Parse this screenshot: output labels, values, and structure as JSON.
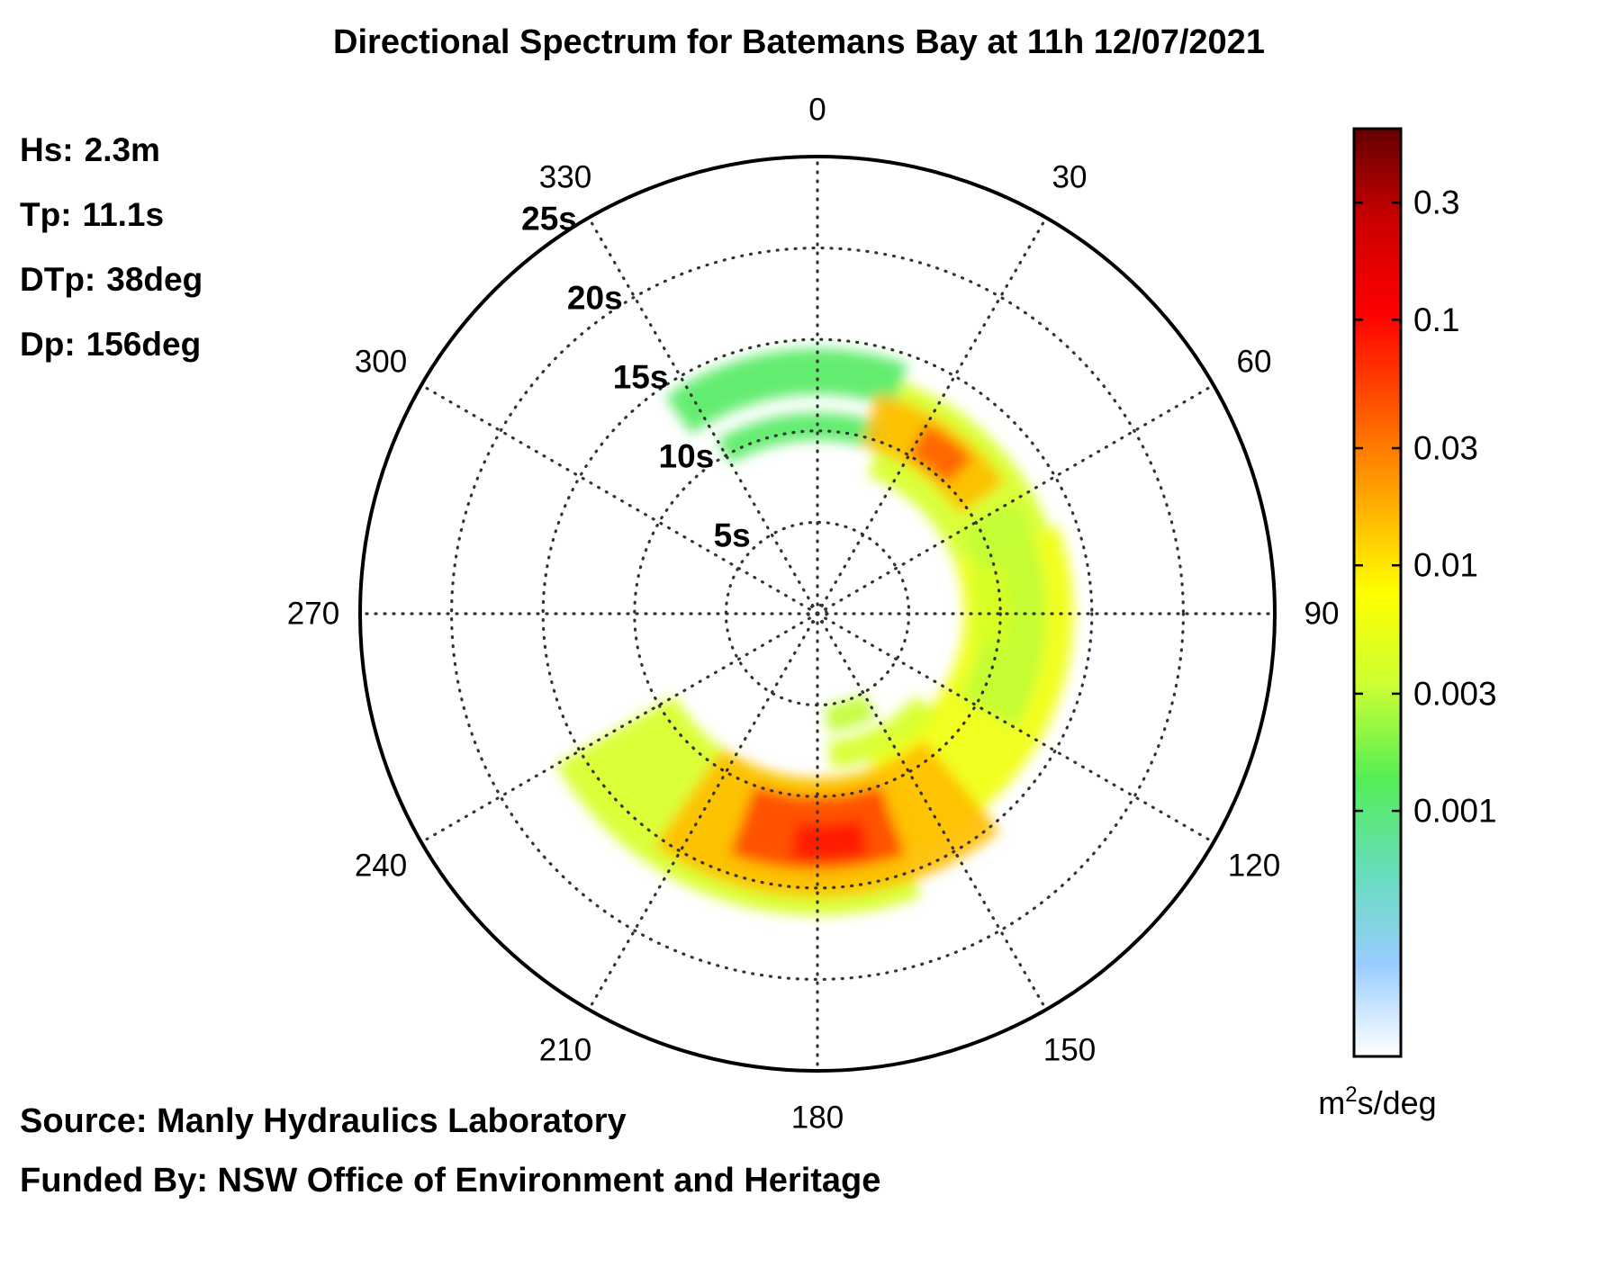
{
  "chart_data": {
    "type": "polar-heatmap",
    "title": "Directional Spectrum for Batemans Bay at 11h 12/07/2021",
    "summary": [
      {
        "label": "Hs:",
        "value": "2.3m"
      },
      {
        "label": "Tp:",
        "value": "11.1s"
      },
      {
        "label": "DTp:",
        "value": "38deg"
      },
      {
        "label": "Dp:",
        "value": "156deg"
      }
    ],
    "angle_axis": {
      "orientation": "clockwise-from-north",
      "labels": [
        "0",
        "30",
        "60",
        "90",
        "120",
        "150",
        "180",
        "210",
        "240",
        "270",
        "300",
        "330"
      ],
      "values": [
        0,
        30,
        60,
        90,
        120,
        150,
        180,
        210,
        240,
        270,
        300,
        330
      ]
    },
    "radial_axis": {
      "unit": "s",
      "max": 25,
      "rings": [
        5,
        10,
        15,
        20,
        25
      ],
      "labels": [
        "5s",
        "10s",
        "15s",
        "20s",
        "25s"
      ],
      "label_direction_deg": 330
    },
    "colorbar": {
      "scale": "log",
      "range": [
        0.0001,
        0.6
      ],
      "ticks": [
        0.001,
        0.003,
        0.01,
        0.03,
        0.1,
        0.3
      ],
      "tick_labels": [
        "0.001",
        "0.003",
        "0.01",
        "0.03",
        "0.1",
        "0.3"
      ],
      "label_main": "m",
      "label_sup": "2",
      "label_rest": "s/deg",
      "stops": [
        "#ffffff",
        "#99ccff",
        "#66ddbb",
        "#55ee55",
        "#ccff33",
        "#ffff00",
        "#ffaa00",
        "#ff5500",
        "#ff0000",
        "#cc0000",
        "#660000"
      ]
    },
    "energy_bands": [
      {
        "dir_from": 70,
        "dir_to": 160,
        "period_from": 8,
        "period_to": 14,
        "level": 0.006
      },
      {
        "dir_from": 20,
        "dir_to": 70,
        "period_from": 8,
        "period_to": 13.5,
        "level": 0.004
      },
      {
        "dir_from": 160,
        "dir_to": 240,
        "period_from": 9,
        "period_to": 16.5,
        "level": 0.004
      },
      {
        "dir_from": 325,
        "dir_to": 20,
        "period_from": 12,
        "period_to": 14.5,
        "level": 0.0012
      },
      {
        "dir_from": 330,
        "dir_to": 20,
        "period_from": 9.5,
        "period_to": 11,
        "level": 0.0012
      },
      {
        "dir_from": 15,
        "dir_to": 55,
        "period_from": 9.5,
        "period_to": 12.5,
        "level": 0.015
      },
      {
        "dir_from": 30,
        "dir_to": 45,
        "period_from": 10,
        "period_to": 12,
        "level": 0.04
      },
      {
        "dir_from": 60,
        "dir_to": 120,
        "period_from": 9,
        "period_to": 12.5,
        "level": 0.003
      },
      {
        "dir_from": 75,
        "dir_to": 100,
        "period_from": 8.5,
        "period_to": 10.5,
        "level": 0.004
      },
      {
        "dir_from": 140,
        "dir_to": 215,
        "period_from": 9,
        "period_to": 15.5,
        "level": 0.015
      },
      {
        "dir_from": 160,
        "dir_to": 200,
        "period_from": 10,
        "period_to": 14,
        "level": 0.05
      },
      {
        "dir_from": 168,
        "dir_to": 186,
        "period_from": 11.5,
        "period_to": 13.5,
        "level": 0.08
      },
      {
        "dir_from": 130,
        "dir_to": 175,
        "period_from": 7,
        "period_to": 8.5,
        "level": 0.004
      },
      {
        "dir_from": 150,
        "dir_to": 175,
        "period_from": 5,
        "period_to": 6.5,
        "level": 0.003
      }
    ]
  },
  "source_text": "Source: Manly Hydraulics Laboratory",
  "funded_text": "Funded By: NSW Office of Environment and Heritage"
}
